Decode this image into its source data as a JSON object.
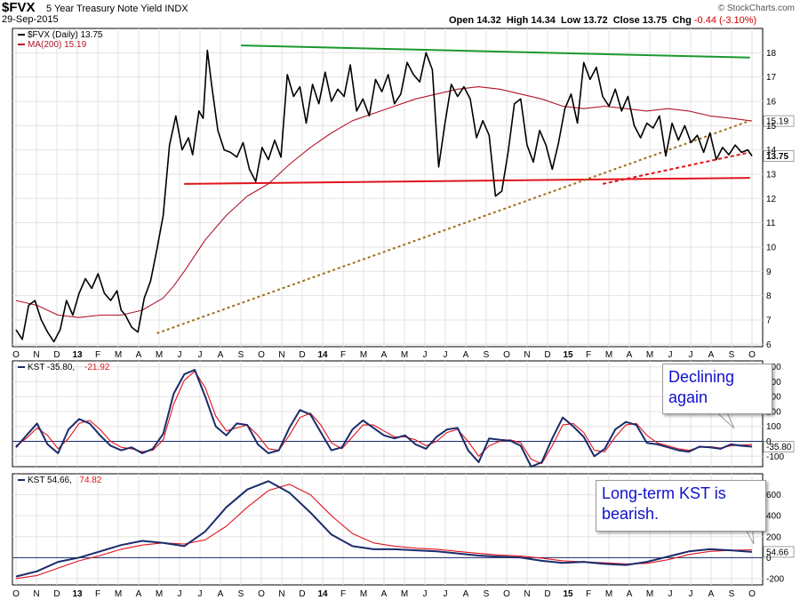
{
  "header": {
    "symbol": "$FVX",
    "description": "5 Year Treasury Note Yield",
    "exchange": "INDX",
    "date": "29-Sep-2015",
    "open_label": "Open",
    "open": "14.32",
    "high_label": "High",
    "high": "14.34",
    "low_label": "Low",
    "low": "13.72",
    "close_label": "Close",
    "close": "13.75",
    "chg_label": "Chg",
    "chg": "-0.44 (-3.10%)",
    "brand": "© StockCharts.com"
  },
  "annotations": {
    "declining": "Declining again",
    "longterm": "Long-term KST is bearish."
  },
  "colors": {
    "price": "#000000",
    "ma": "#b0152a",
    "kst": "#1a2b6b",
    "signal": "#e0141c",
    "green_line": "#1a9a2e",
    "red_line": "#e0141c",
    "brown_line": "#a0701c",
    "grid": "#e3e3e3"
  },
  "chart_data": [
    {
      "type": "line",
      "title": "$FVX 5 Year Treasury Note Yield INDX",
      "x_ticks": [
        "O",
        "N",
        "D",
        "13",
        "F",
        "M",
        "A",
        "M",
        "J",
        "J",
        "A",
        "S",
        "O",
        "N",
        "D",
        "14",
        "F",
        "M",
        "A",
        "M",
        "J",
        "J",
        "A",
        "S",
        "O",
        "N",
        "D",
        "15",
        "F",
        "M",
        "A",
        "M",
        "J",
        "J",
        "A",
        "S",
        "O"
      ],
      "y_ticks": [
        6,
        7,
        8,
        9,
        10,
        11,
        12,
        13,
        14,
        15,
        16,
        17,
        18
      ],
      "ylim": [
        5.9,
        19.0
      ],
      "legend": [
        {
          "label": "$FVX (Daily) 13.75"
        },
        {
          "label": "MA(200) 15.19"
        }
      ],
      "last_value_labels": [
        "15.19",
        "13.75"
      ],
      "series": [
        {
          "name": "$FVX (Daily)",
          "x": [
            0,
            0.3,
            0.6,
            0.9,
            1.2,
            1.5,
            1.8,
            2.1,
            2.4,
            2.7,
            3.0,
            3.3,
            3.6,
            3.9,
            4.2,
            4.5,
            4.8,
            5.0,
            5.2,
            5.5,
            5.8,
            6.1,
            6.4,
            6.7,
            7.0,
            7.3,
            7.6,
            7.9,
            8.2,
            8.4,
            8.7,
            8.9,
            9.1,
            9.3,
            9.6,
            9.9,
            10.2,
            10.5,
            10.8,
            11.1,
            11.4,
            11.7,
            12.0,
            12.3,
            12.6,
            12.9,
            13.2,
            13.5,
            13.8,
            14.1,
            14.4,
            14.7,
            15.0,
            15.3,
            15.6,
            15.9,
            16.2,
            16.5,
            16.8,
            17.1,
            17.4,
            17.7,
            18.0,
            18.3,
            18.6,
            18.9,
            19.2,
            19.5,
            19.8,
            20.1,
            20.4,
            20.7,
            21.0,
            21.3,
            21.6,
            21.9,
            22.2,
            22.5,
            22.8,
            23.1,
            23.4,
            23.7,
            24.0,
            24.3,
            24.6,
            24.9,
            25.2,
            25.5,
            25.8,
            26.1,
            26.4,
            26.7,
            27.0,
            27.3,
            27.6,
            27.9,
            28.2,
            28.5,
            28.8,
            29.1,
            29.4,
            29.7,
            30.0,
            30.3,
            30.6,
            30.9,
            31.2,
            31.5,
            31.8,
            32.1,
            32.4,
            32.7,
            33.0,
            33.3,
            33.6,
            33.9,
            34.2,
            34.5,
            34.8,
            35.0
          ],
          "values": [
            6.6,
            6.2,
            7.6,
            7.8,
            7.0,
            6.5,
            6.1,
            6.6,
            7.8,
            7.2,
            8.1,
            8.7,
            8.3,
            8.9,
            8.1,
            7.8,
            8.2,
            7.4,
            7.2,
            6.7,
            6.5,
            7.9,
            8.6,
            9.9,
            11.3,
            14.2,
            15.4,
            14.0,
            14.5,
            13.8,
            15.6,
            15.3,
            18.1,
            16.7,
            14.8,
            14.0,
            13.9,
            13.7,
            14.3,
            13.2,
            12.7,
            14.1,
            13.6,
            14.4,
            13.7,
            17.1,
            16.2,
            16.6,
            15.1,
            16.7,
            15.9,
            17.2,
            16.0,
            16.5,
            16.2,
            17.5,
            15.6,
            16.1,
            15.4,
            16.9,
            16.4,
            17.1,
            15.9,
            16.3,
            17.6,
            17.1,
            16.8,
            18.0,
            17.3,
            13.3,
            15.1,
            16.7,
            16.2,
            16.6,
            16.1,
            14.5,
            15.2,
            14.6,
            12.1,
            12.3,
            13.9,
            15.9,
            16.1,
            14.2,
            13.5,
            14.8,
            14.2,
            13.2,
            14.3,
            15.7,
            16.3,
            15.1,
            17.6,
            16.9,
            17.4,
            16.2,
            15.8,
            16.5,
            15.6,
            16.2,
            15.0,
            14.5,
            15.1,
            14.9,
            15.4,
            13.75,
            15.1,
            14.4,
            15.0,
            14.3,
            14.6,
            13.9,
            14.7,
            13.6,
            14.1,
            13.8,
            14.2,
            13.9,
            14.0,
            13.75
          ]
        },
        {
          "name": "MA(200)",
          "x": [
            0,
            1,
            2,
            3,
            4,
            5,
            6,
            7,
            7.5,
            8,
            9,
            10,
            11,
            12,
            13,
            14,
            15,
            16,
            17,
            18,
            19,
            20,
            21,
            22,
            23,
            24,
            25,
            26,
            27,
            28,
            29,
            30,
            31,
            32,
            33,
            34,
            35
          ],
          "values": [
            7.8,
            7.6,
            7.2,
            7.1,
            7.2,
            7.2,
            7.4,
            7.9,
            8.4,
            9.0,
            10.3,
            11.3,
            12.1,
            12.6,
            13.4,
            14.1,
            14.7,
            15.2,
            15.5,
            15.8,
            16.1,
            16.3,
            16.5,
            16.6,
            16.5,
            16.3,
            16.1,
            15.8,
            15.7,
            15.8,
            15.7,
            15.6,
            15.7,
            15.6,
            15.4,
            15.3,
            15.19
          ]
        }
      ],
      "trend_lines": [
        {
          "name": "green resistance",
          "x": [
            10.7,
            34.9
          ],
          "values": [
            18.3,
            17.8
          ]
        },
        {
          "name": "red support",
          "x": [
            8.0,
            34.9
          ],
          "values": [
            12.6,
            12.85
          ]
        },
        {
          "name": "red dashed",
          "x": [
            27.9,
            34.9
          ],
          "values": [
            12.6,
            13.9
          ]
        },
        {
          "name": "brown dashed",
          "x": [
            6.7,
            34.9
          ],
          "values": [
            6.45,
            15.2
          ]
        }
      ]
    },
    {
      "type": "line",
      "legend": [
        {
          "label": "KST -35.80"
        },
        {
          "label": "-21.92"
        }
      ],
      "y_ticks": [
        -100,
        0,
        100,
        200,
        300,
        400,
        500
      ],
      "ylim": [
        -170,
        540
      ],
      "last_value_labels": [
        "-35.80"
      ],
      "series": [
        {
          "name": "KST",
          "x": [
            0,
            0.5,
            1,
            1.5,
            2,
            2.5,
            3,
            3.5,
            4,
            4.5,
            5,
            5.5,
            6,
            6.5,
            7,
            7.5,
            8,
            8.5,
            9,
            9.5,
            10,
            10.5,
            11,
            11.5,
            12,
            12.5,
            13,
            13.5,
            14,
            14.5,
            15,
            15.5,
            16,
            16.5,
            17,
            17.5,
            18,
            18.5,
            19,
            19.5,
            20,
            20.5,
            21,
            21.5,
            22,
            22.5,
            23,
            23.5,
            24,
            24.5,
            25,
            25.5,
            26,
            26.5,
            27,
            27.5,
            28,
            28.5,
            29,
            29.5,
            30,
            30.5,
            31,
            31.5,
            32,
            32.5,
            33,
            33.5,
            34,
            34.5,
            35
          ],
          "values": [
            -40,
            40,
            120,
            -20,
            -80,
            80,
            150,
            120,
            40,
            -30,
            -60,
            -40,
            -80,
            -50,
            50,
            320,
            450,
            480,
            300,
            100,
            40,
            120,
            110,
            -20,
            -80,
            -60,
            90,
            210,
            180,
            60,
            -60,
            -40,
            80,
            140,
            90,
            40,
            20,
            40,
            -20,
            -50,
            30,
            80,
            90,
            -60,
            -140,
            20,
            10,
            5,
            -30,
            -170,
            -140,
            20,
            160,
            100,
            30,
            -100,
            -50,
            80,
            130,
            110,
            -10,
            -20,
            -40,
            -60,
            -70,
            -35.8,
            -40,
            -50,
            -20,
            -30,
            -35.8
          ]
        },
        {
          "name": "Signal",
          "x": [
            0,
            0.5,
            1,
            1.5,
            2,
            2.5,
            3,
            3.5,
            4,
            4.5,
            5,
            5.5,
            6,
            6.5,
            7,
            7.5,
            8,
            8.5,
            9,
            9.5,
            10,
            10.5,
            11,
            11.5,
            12,
            12.5,
            13,
            13.5,
            14,
            14.5,
            15,
            15.5,
            16,
            16.5,
            17,
            17.5,
            18,
            18.5,
            19,
            19.5,
            20,
            20.5,
            21,
            21.5,
            22,
            22.5,
            23,
            23.5,
            24,
            24.5,
            25,
            25.5,
            26,
            26.5,
            27,
            27.5,
            28,
            28.5,
            29,
            29.5,
            30,
            30.5,
            31,
            31.5,
            32,
            32.5,
            33,
            33.5,
            34,
            34.5,
            35
          ],
          "values": [
            -30,
            20,
            90,
            40,
            -50,
            20,
            120,
            140,
            80,
            0,
            -40,
            -50,
            -70,
            -60,
            10,
            250,
            410,
            470,
            360,
            170,
            70,
            90,
            110,
            40,
            -50,
            -60,
            40,
            160,
            190,
            110,
            -10,
            -50,
            30,
            110,
            110,
            70,
            30,
            30,
            10,
            -30,
            0,
            60,
            80,
            0,
            -100,
            -30,
            0,
            10,
            -10,
            -120,
            -150,
            -30,
            110,
            120,
            60,
            -60,
            -70,
            30,
            110,
            120,
            40,
            -10,
            -30,
            -50,
            -60,
            -40,
            -35,
            -45,
            -30,
            -25,
            -21.92
          ]
        }
      ]
    },
    {
      "type": "line",
      "legend": [
        {
          "label": "KST 54.66"
        },
        {
          "label": "74.82"
        }
      ],
      "y_ticks": [
        -200,
        0,
        200,
        400,
        600
      ],
      "ylim": [
        -260,
        800
      ],
      "last_value_labels": [
        "54.66"
      ],
      "series": [
        {
          "name": "KST",
          "x": [
            0,
            1,
            2,
            3,
            4,
            5,
            6,
            7,
            8,
            9,
            10,
            11,
            12,
            13,
            14,
            15,
            16,
            17,
            18,
            19,
            20,
            21,
            22,
            23,
            24,
            25,
            26,
            27,
            28,
            29,
            30,
            31,
            32,
            33,
            34,
            35
          ],
          "values": [
            -180,
            -130,
            -40,
            0,
            60,
            120,
            160,
            140,
            110,
            250,
            480,
            650,
            730,
            620,
            430,
            220,
            110,
            80,
            80,
            70,
            60,
            40,
            20,
            10,
            0,
            -30,
            -50,
            -40,
            -60,
            -70,
            -40,
            10,
            60,
            80,
            70,
            54.66
          ]
        },
        {
          "name": "Signal",
          "x": [
            0,
            1,
            2,
            3,
            4,
            5,
            6,
            7,
            8,
            9,
            10,
            11,
            12,
            13,
            14,
            15,
            16,
            17,
            18,
            19,
            20,
            21,
            22,
            23,
            24,
            25,
            26,
            27,
            28,
            29,
            30,
            31,
            32,
            33,
            34,
            35
          ],
          "values": [
            -200,
            -170,
            -100,
            -30,
            20,
            80,
            120,
            140,
            130,
            170,
            300,
            480,
            640,
            700,
            600,
            400,
            230,
            140,
            110,
            90,
            80,
            60,
            40,
            25,
            15,
            -5,
            -30,
            -40,
            -50,
            -60,
            -55,
            -20,
            30,
            60,
            70,
            74.82
          ]
        }
      ]
    }
  ]
}
